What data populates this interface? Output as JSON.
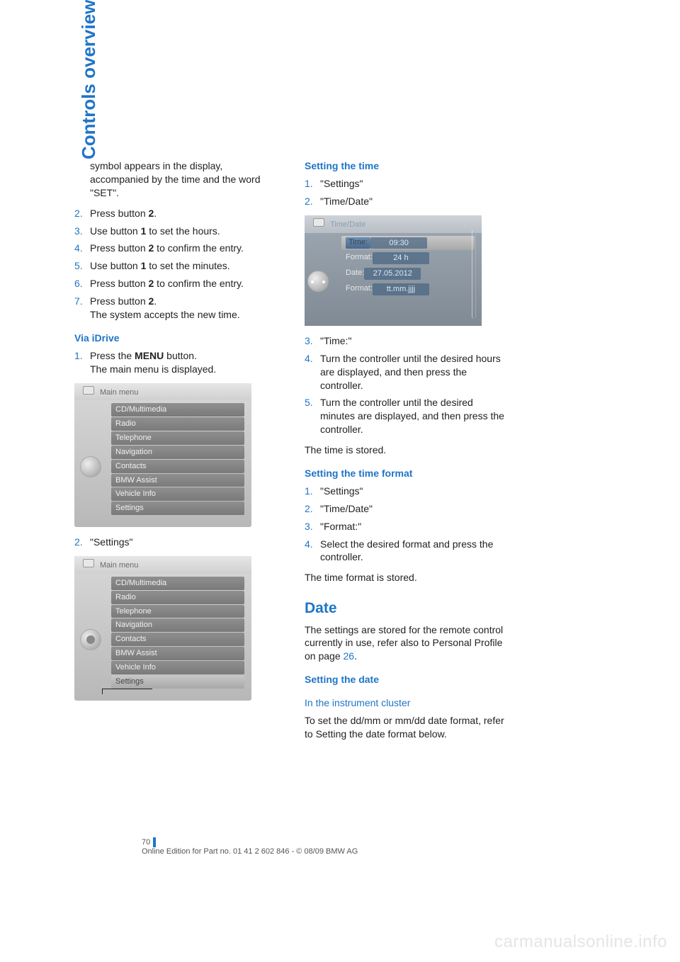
{
  "side_tab": "Controls overview",
  "colors": {
    "accent": "#2075c7",
    "text": "#222222",
    "idrive_row_bg": "#8f8f8f",
    "idrive_row_text": "#f0f0f0"
  },
  "left": {
    "intro": "symbol appears in the display, accompanied by the time and the word \"SET\".",
    "steps_top": [
      {
        "n": "2.",
        "t": "Press button ",
        "b": "2",
        "t2": "."
      },
      {
        "n": "3.",
        "t": "Use button ",
        "b": "1",
        "t2": " to set the hours."
      },
      {
        "n": "4.",
        "t": "Press button ",
        "b": "2",
        "t2": " to confirm the entry."
      },
      {
        "n": "5.",
        "t": "Use button ",
        "b": "1",
        "t2": " to set the minutes."
      },
      {
        "n": "6.",
        "t": "Press button ",
        "b": "2",
        "t2": " to confirm the entry."
      },
      {
        "n": "7.",
        "t": "Press button ",
        "b": "2",
        "t2": ".",
        "sub": "The system accepts the new time."
      }
    ],
    "via_idrive": "Via iDrive",
    "step1_n": "1.",
    "step1_a": "Press the ",
    "step1_b": "MENU",
    "step1_c": " button.",
    "step1_sub": "The main menu is displayed.",
    "idrive1": {
      "title": "Main menu",
      "items": [
        "CD/Multimedia",
        "Radio",
        "Telephone",
        "Navigation",
        "Contacts",
        "BMW Assist",
        "Vehicle Info",
        "Settings"
      ],
      "selected": -1
    },
    "step2_n": "2.",
    "step2_t": "\"Settings\"",
    "idrive2": {
      "title": "Main menu",
      "items": [
        "CD/Multimedia",
        "Radio",
        "Telephone",
        "Navigation",
        "Contacts",
        "BMW Assist",
        "Vehicle Info",
        "Settings"
      ],
      "selected": 7
    }
  },
  "right": {
    "h_setting_time": "Setting the time",
    "st_steps_a": [
      {
        "n": "1.",
        "t": "\"Settings\""
      },
      {
        "n": "2.",
        "t": "\"Time/Date\""
      }
    ],
    "timedate_shot": {
      "title": "Time/Date",
      "rows": [
        {
          "label": "Time:",
          "value": "09:30",
          "sel": true
        },
        {
          "label": "Format:",
          "value": "24 h"
        },
        {
          "label": "Date:",
          "value": "27.05.2012"
        },
        {
          "label": "Format:",
          "value": "tt.mm.jjjj"
        }
      ]
    },
    "st_steps_b": [
      {
        "n": "3.",
        "t": "\"Time:\""
      },
      {
        "n": "4.",
        "t": "Turn the controller until the desired hours are displayed, and then press the controller."
      },
      {
        "n": "5.",
        "t": "Turn the controller until the desired minutes are displayed, and then press the controller."
      }
    ],
    "time_stored": "The time is stored.",
    "h_setting_time_format": "Setting the time format",
    "stf_steps": [
      {
        "n": "1.",
        "t": "\"Settings\""
      },
      {
        "n": "2.",
        "t": "\"Time/Date\""
      },
      {
        "n": "3.",
        "t": "\"Format:\""
      },
      {
        "n": "4.",
        "t": "Select the desired format and press the controller."
      }
    ],
    "tf_stored": "The time format is stored.",
    "h_date": "Date",
    "date_p_a": "The settings are stored for the remote control currently in use, refer also to Personal Profile on page ",
    "date_p_link": "26",
    "date_p_b": ".",
    "h_setting_date": "Setting the date",
    "h_in_cluster": "In the instrument cluster",
    "cluster_p": "To set the dd/mm or mm/dd date format, refer to Setting the date format below."
  },
  "footer": {
    "page": "70",
    "line": "Online Edition for Part no. 01 41 2 602 846 - © 08/09 BMW AG"
  },
  "watermark": "carmanualsonline.info"
}
